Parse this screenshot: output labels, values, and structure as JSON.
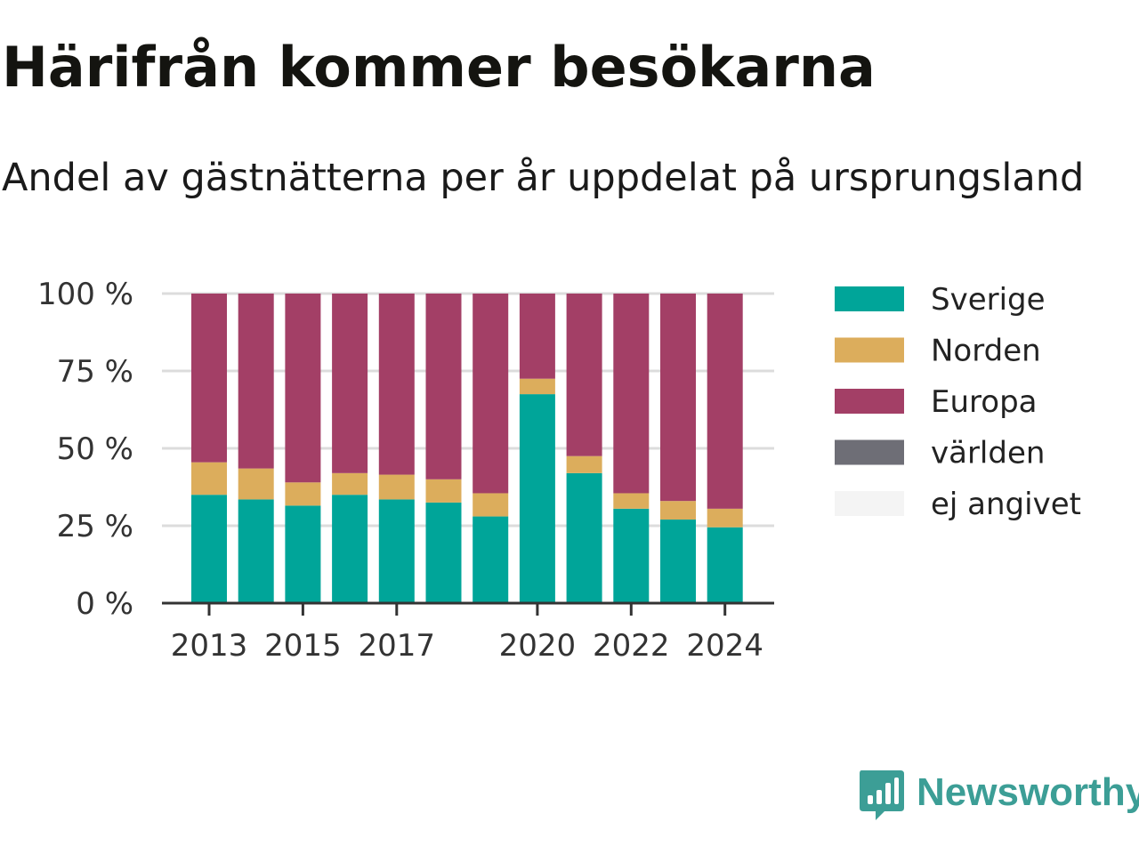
{
  "title": "Härifrån kommer besökarna",
  "subtitle": "Andel av gästnätterna per år uppdelat på ursprungsland",
  "brand": {
    "name": "Newsworthy",
    "icon": "newsworthy-logo-icon",
    "color": "#3c9e96"
  },
  "chart_data": {
    "type": "bar",
    "stacked": true,
    "categories": [
      "2013",
      "2014",
      "2015",
      "2016",
      "2017",
      "2018",
      "2019",
      "2020",
      "2021",
      "2022",
      "2023",
      "2024"
    ],
    "x_tick_labels": [
      "2013",
      "",
      "2015",
      "",
      "2017",
      "",
      "",
      "2020",
      "",
      "2022",
      "",
      "2024"
    ],
    "y_tick_labels": [
      "0 %",
      "25 %",
      "50 %",
      "75 %",
      "100 %"
    ],
    "ylim": [
      0,
      100
    ],
    "grid": true,
    "legend_position": "right",
    "series": [
      {
        "name": "Sverige",
        "color": "#00a599",
        "values": [
          35,
          33.5,
          31.5,
          35,
          33.5,
          32.5,
          28,
          67.5,
          42,
          30.5,
          27,
          24.5
        ]
      },
      {
        "name": "Norden",
        "color": "#dcad5c",
        "values": [
          10.5,
          10,
          7.5,
          7,
          8,
          7.5,
          7.5,
          5,
          5.5,
          5,
          6,
          6
        ]
      },
      {
        "name": "Europa",
        "color": "#a33f66",
        "values": [
          54.5,
          56.5,
          61,
          58,
          58.5,
          60,
          64.5,
          27.5,
          52.5,
          64.5,
          67,
          69.5
        ]
      },
      {
        "name": "världen",
        "color": "#6e6e76",
        "values": [
          0,
          0,
          0,
          0,
          0,
          0,
          0,
          0,
          0,
          0,
          0,
          0
        ]
      },
      {
        "name": "ej angivet",
        "color": "#f4f4f4",
        "values": [
          0,
          0,
          0,
          0,
          0,
          0,
          0,
          0,
          0,
          0,
          0,
          0
        ]
      }
    ]
  }
}
